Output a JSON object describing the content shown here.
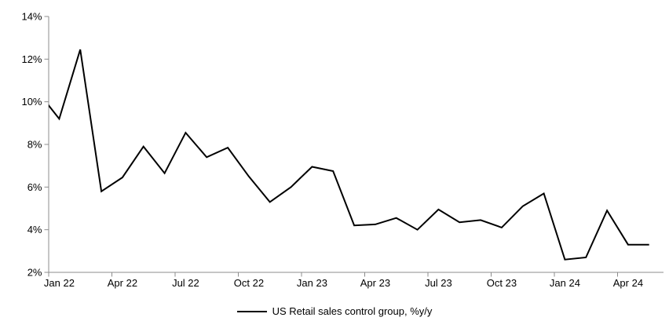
{
  "chart_data": {
    "type": "line",
    "title": "",
    "categories": [
      "Dec 21",
      "Jan 22",
      "Feb 22",
      "Mar 22",
      "Apr 22",
      "May 22",
      "Jun 22",
      "Jul 22",
      "Aug 22",
      "Sep 22",
      "Oct 22",
      "Nov 22",
      "Dec 22",
      "Jan 23",
      "Feb 23",
      "Mar 23",
      "Apr 23",
      "May 23",
      "Jun 23",
      "Jul 23",
      "Aug 23",
      "Sep 23",
      "Oct 23",
      "Nov 23",
      "Dec 23",
      "Jan 24",
      "Feb 24",
      "Mar 24",
      "Apr 24",
      "May 24"
    ],
    "first_point_clipped": true,
    "series": [
      {
        "name": "US Retail sales control group, %y/y",
        "color": "#000000",
        "values": [
          10.45,
          9.2,
          12.45,
          5.8,
          6.45,
          7.9,
          6.65,
          8.55,
          7.4,
          7.85,
          6.5,
          5.3,
          6.0,
          6.95,
          6.75,
          4.2,
          4.25,
          4.55,
          4.0,
          4.95,
          4.35,
          4.45,
          4.1,
          5.1,
          5.7,
          2.6,
          2.7,
          4.9,
          3.3,
          3.3
        ]
      }
    ],
    "ylim": [
      2,
      14
    ],
    "ytick_step": 2,
    "ytick_labels": [
      "14%",
      "12%",
      "10%",
      "8%",
      "6%",
      "4%",
      "2%"
    ],
    "xtick_labels": [
      "Jan 22",
      "Apr 22",
      "Jul 22",
      "Oct 22",
      "Jan 23",
      "Apr 23",
      "Jul 23",
      "Oct 23",
      "Jan 24",
      "Apr 24"
    ],
    "xtick_every_months": 3,
    "legend_position": "bottom",
    "grid": false,
    "axis_color": "#8C8C8C",
    "text_color": "#000000",
    "background_color": "#FFFFFF"
  }
}
